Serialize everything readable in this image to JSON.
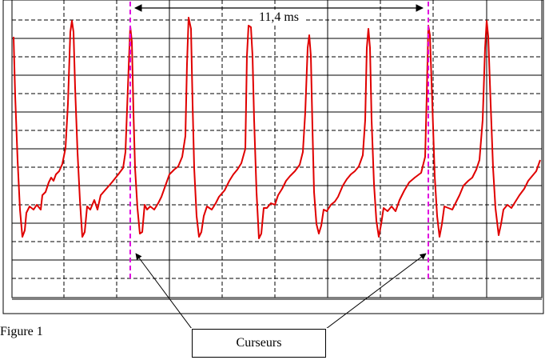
{
  "figure_label": "Figure 1",
  "measurement_label": "11,4 ms",
  "callout_label": "Curseurs",
  "colors": {
    "signal": "#e00000",
    "cursor": "#e000e0",
    "grid": "#000000",
    "background": "#ffffff"
  }
}
